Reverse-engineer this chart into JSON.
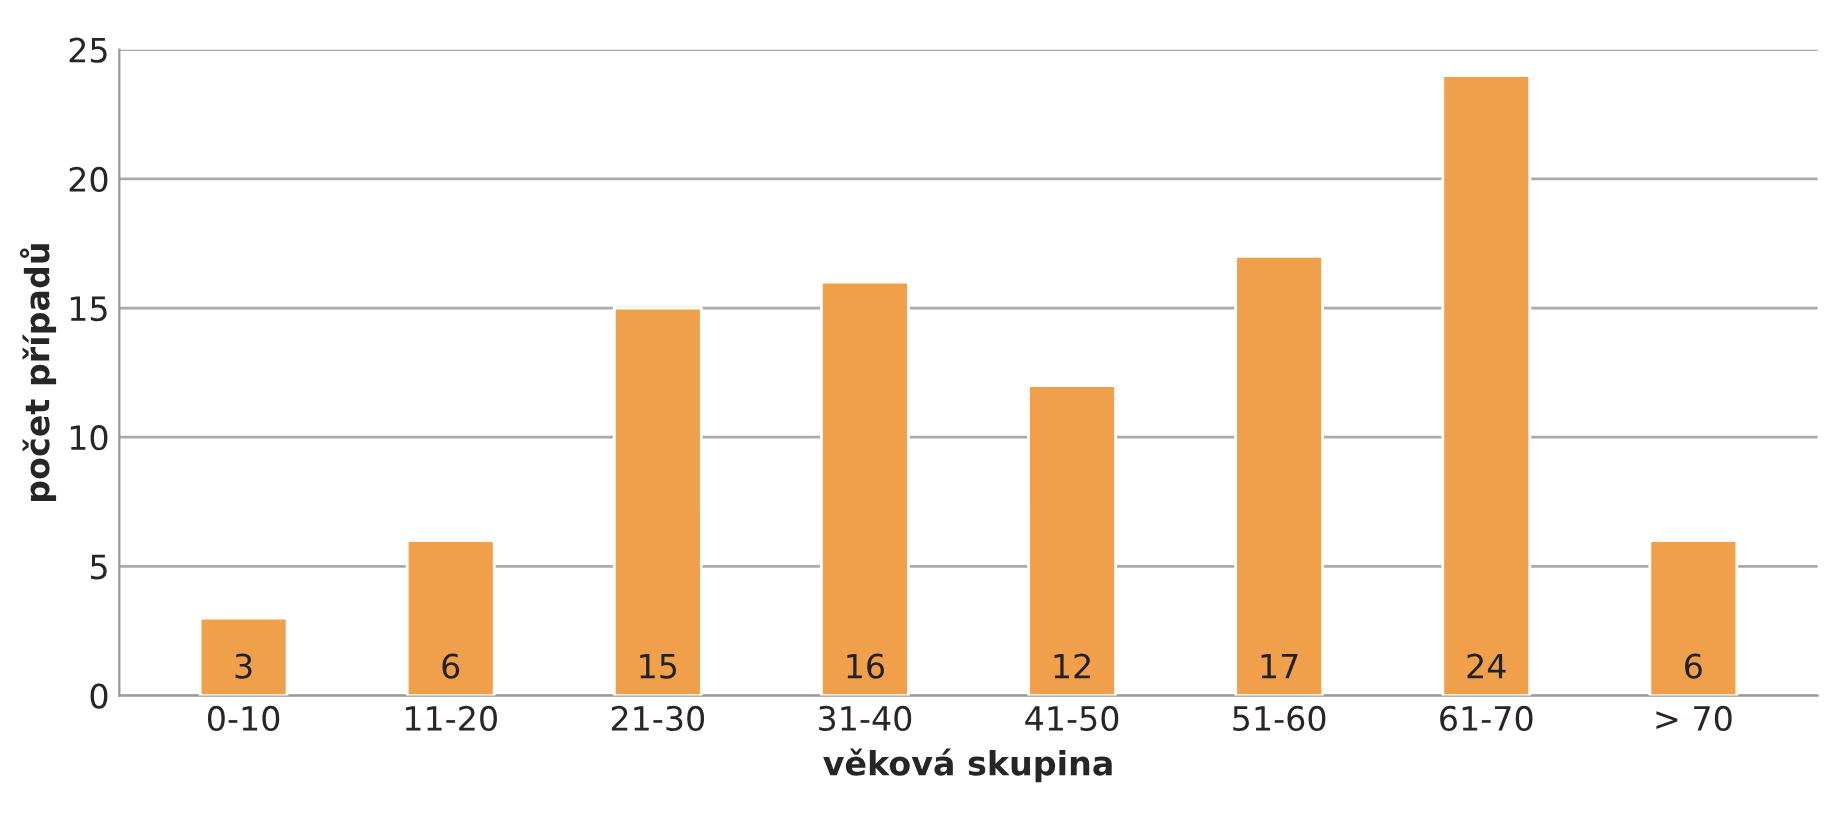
{
  "chart_data": {
    "type": "bar",
    "categories": [
      "0-10",
      "11-20",
      "21-30",
      "31-40",
      "41-50",
      "51-60",
      "61-70",
      "> 70"
    ],
    "values": [
      3,
      6,
      15,
      16,
      12,
      17,
      24,
      6
    ],
    "color": "#f0a04b",
    "xlabel": "věková skupina",
    "ylabel": "počet případů",
    "ylim": [
      0,
      25
    ],
    "yticks": [
      0,
      5,
      10,
      15,
      20,
      25
    ],
    "grid": "y",
    "data_labels": true
  }
}
